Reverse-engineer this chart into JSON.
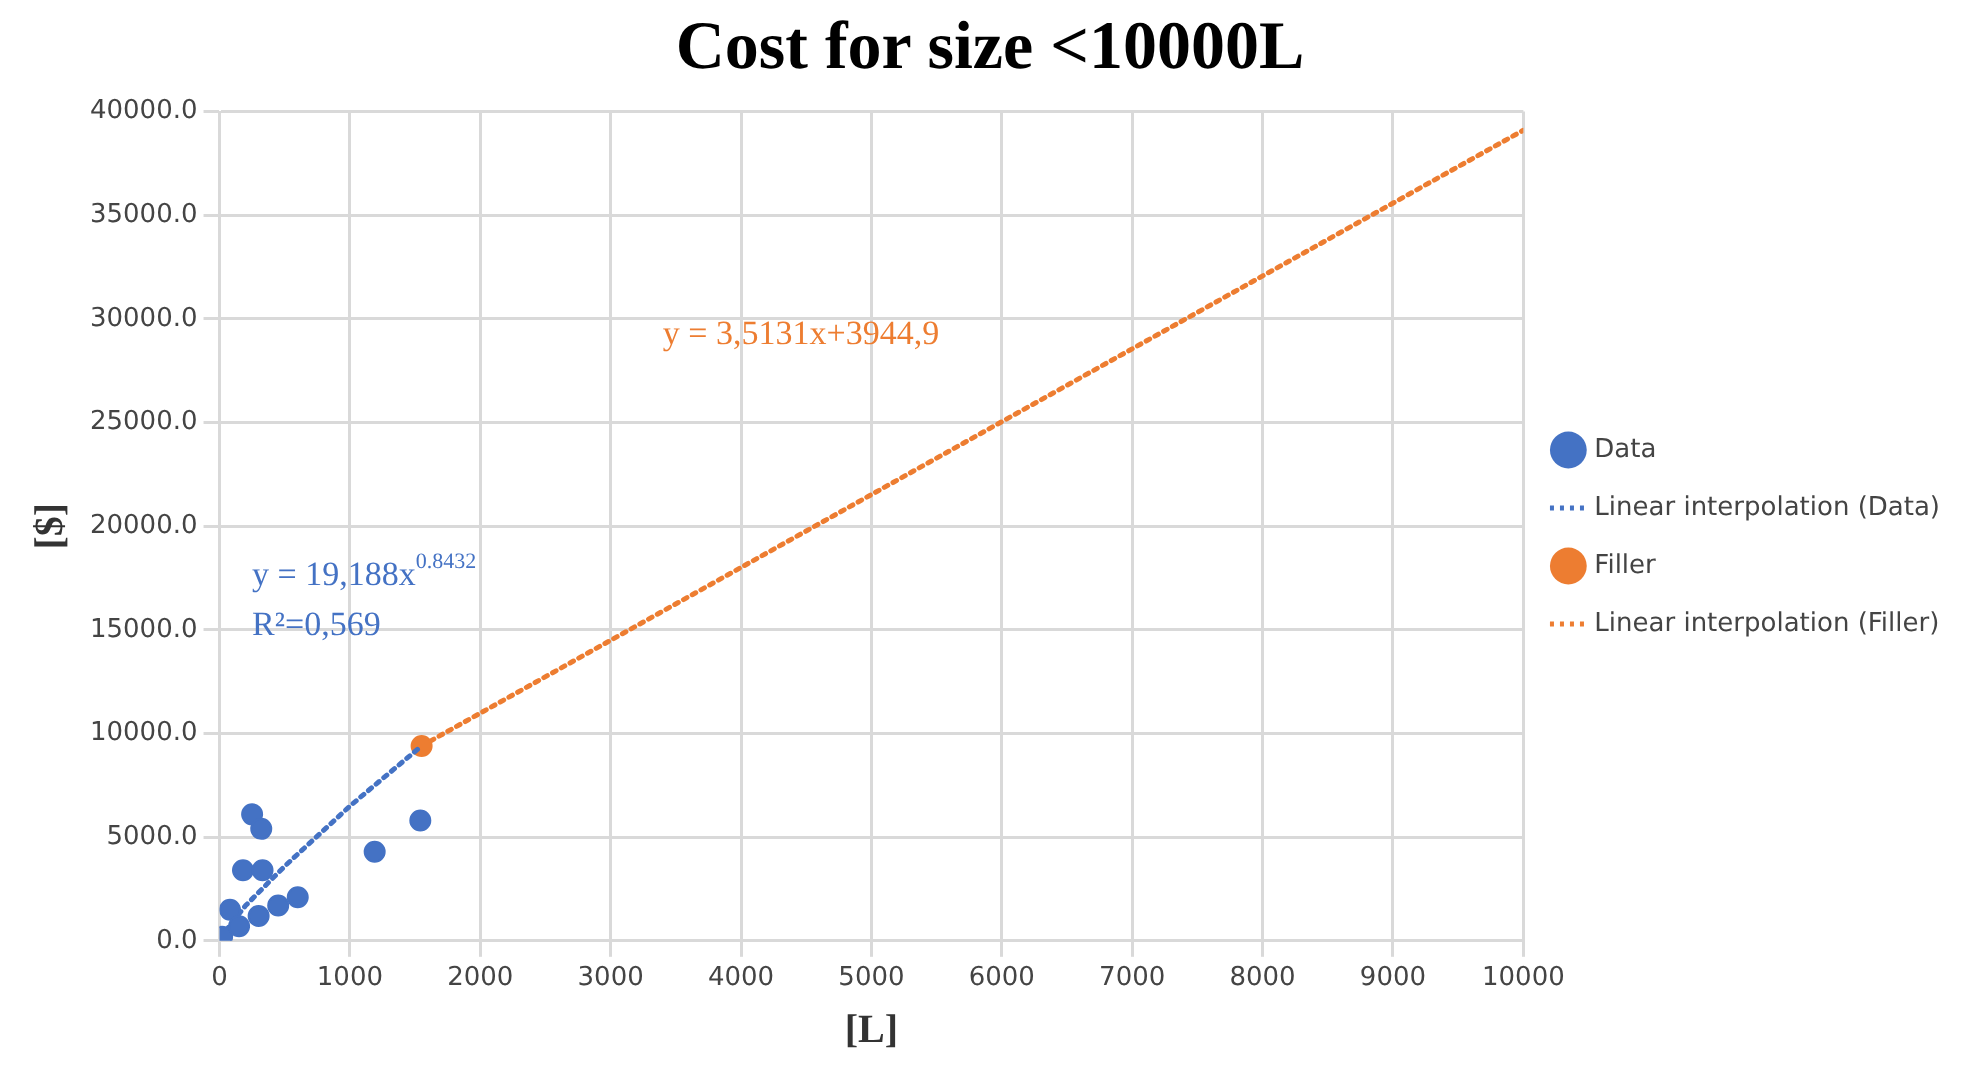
{
  "chart_data": {
    "type": "scatter",
    "title": "Cost for size <10000L",
    "xlabel": "[L]",
    "ylabel": "[$]",
    "xlim": [
      0,
      10000
    ],
    "xticks": [
      0,
      1000,
      2000,
      3000,
      4000,
      5000,
      6000,
      7000,
      8000,
      9000,
      10000
    ],
    "ylim": [
      0,
      40000
    ],
    "yticks": [
      {
        "value": 0,
        "label": "0.0"
      },
      {
        "value": 5000,
        "label": "5000.0"
      },
      {
        "value": 10000,
        "label": "10000.0"
      },
      {
        "value": 15000,
        "label": "15000.0"
      },
      {
        "value": 20000,
        "label": "20000.0"
      },
      {
        "value": 25000,
        "label": "25000.0"
      },
      {
        "value": 30000,
        "label": "30000.0"
      },
      {
        "value": 35000,
        "label": "35000.0"
      },
      {
        "value": 40000,
        "label": "40000.0"
      }
    ],
    "grid": true,
    "legend": "right",
    "marker": "circle",
    "series": [
      {
        "name": "Data",
        "color": "#4472c4",
        "x": [
          20,
          80,
          150,
          300,
          450,
          600,
          180,
          330,
          250,
          320,
          1190,
          1540
        ],
        "values": [
          200,
          1500,
          700,
          1200,
          1700,
          2100,
          3400,
          3400,
          6100,
          5400,
          4300,
          5800
        ]
      },
      {
        "name": "Linear interpolation (Data)",
        "type": "line",
        "color": "#4472c4",
        "line_style": "dotted",
        "marker": "none",
        "x": [
          50,
          100,
          200,
          500,
          1000,
          1550
        ],
        "values": [
          500,
          900,
          1700,
          3600,
          6500,
          9400
        ]
      },
      {
        "name": "Filler",
        "color": "#ed7d31",
        "x": [
          1550
        ],
        "values": [
          9400
        ]
      },
      {
        "name": "Linear interpolation (Filler)",
        "type": "line",
        "color": "#ed7d31",
        "line_style": "dotted",
        "marker": "none",
        "x": [
          1550,
          10000
        ],
        "values": [
          9400,
          39100
        ]
      }
    ],
    "annotations": [
      "y = 19,188x$^{0.8432}$",
      "R²=0,569",
      "y = 3,5131x+3944,9"
    ]
  }
}
